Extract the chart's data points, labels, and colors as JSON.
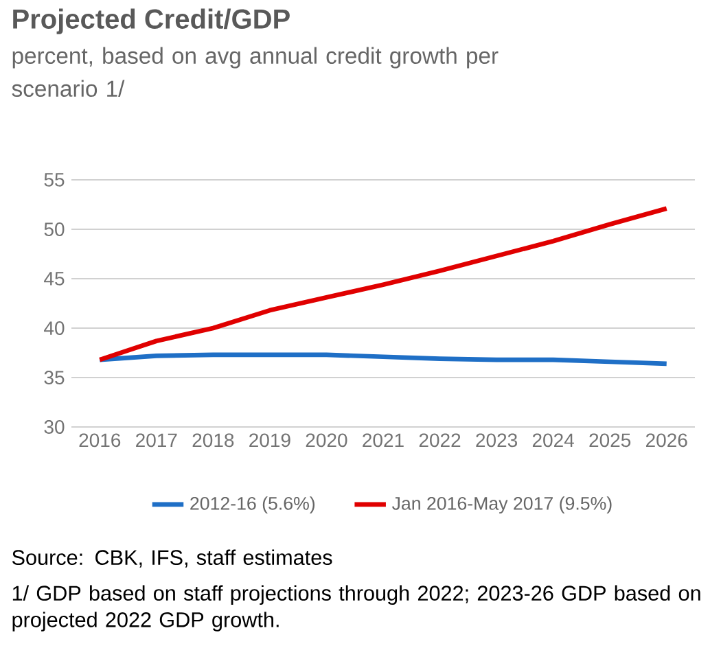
{
  "chart_data": {
    "type": "line",
    "title": "Projected Credit/GDP",
    "subtitle": "percent, based on avg annual credit growth per scenario 1/",
    "categories": [
      "2016",
      "2017",
      "2018",
      "2019",
      "2020",
      "2021",
      "2022",
      "2023",
      "2024",
      "2025",
      "2026"
    ],
    "series": [
      {
        "name": "2012-16 (5.6%)",
        "color": "#1f6fc6",
        "values": [
          36.8,
          37.2,
          37.3,
          37.3,
          37.3,
          37.1,
          36.9,
          36.8,
          36.8,
          36.6,
          36.4
        ]
      },
      {
        "name": "Jan 2016-May 2017 (9.5%)",
        "color": "#e00000",
        "values": [
          36.8,
          38.7,
          40.0,
          41.8,
          43.1,
          44.4,
          45.8,
          47.3,
          48.8,
          50.5,
          52.1
        ]
      }
    ],
    "ylim": [
      30,
      55
    ],
    "yticks": [
      30,
      35,
      40,
      45,
      50,
      55
    ],
    "grid": "y",
    "legend": "bottom",
    "marker": "none",
    "line_style": "solid",
    "annotations": [
      "Source: CBK, IFS, staff estimates",
      "1/  GDP based on staff projections through 2022; 2023-26 GDP based on projected 2022 GDP growth."
    ]
  }
}
